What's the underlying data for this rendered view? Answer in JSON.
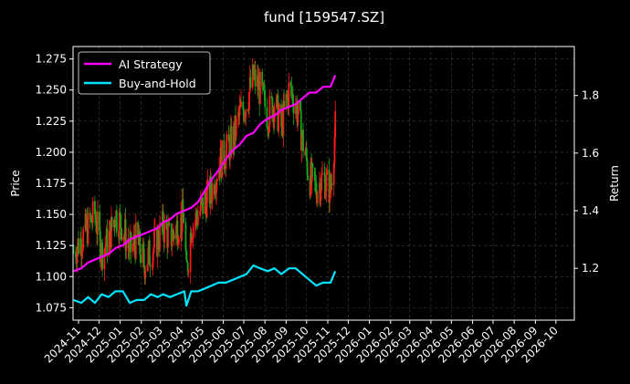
{
  "chart_data": {
    "type": "line",
    "title": "fund [159547.SZ]",
    "ylabel_left": "Price",
    "ylabel_right": "Return",
    "grid": true,
    "legend_position": "top-left",
    "x_ticks": [
      "2024-11",
      "2024-12",
      "2025-01",
      "2025-02",
      "2025-03",
      "2025-04",
      "2025-05",
      "2025-06",
      "2025-07",
      "2025-08",
      "2025-09",
      "2025-10",
      "2025-11",
      "2025-12",
      "2026-01",
      "2026-02",
      "2026-03",
      "2026-04",
      "2026-05",
      "2026-06",
      "2026-07",
      "2026-08",
      "2026-09",
      "2026-10"
    ],
    "x_range": [
      "2024-10-24",
      "2026-10-28"
    ],
    "left_axis": {
      "ylim": [
        1.065,
        1.285
      ],
      "ticks": [
        "1.075",
        "1.100",
        "1.125",
        "1.150",
        "1.175",
        "1.200",
        "1.225",
        "1.250",
        "1.275"
      ]
    },
    "right_axis": {
      "ylim": [
        1.02,
        1.97
      ],
      "ticks": [
        "1.2",
        "1.4",
        "1.6",
        "1.8"
      ]
    },
    "colors": {
      "ai": "#ff00ff",
      "bh": "#00e5ff",
      "up": "#ff1a1a",
      "down": "#1aa31a",
      "grid": "#444444"
    },
    "series": [
      {
        "name": "AI Strategy",
        "axis": "right",
        "x": [
          "2024-10-25",
          "2024-11-05",
          "2024-11-15",
          "2024-11-25",
          "2024-12-05",
          "2024-12-15",
          "2024-12-25",
          "2025-01-05",
          "2025-01-15",
          "2025-01-25",
          "2025-02-05",
          "2025-02-15",
          "2025-02-25",
          "2025-03-05",
          "2025-03-15",
          "2025-03-25",
          "2025-04-05",
          "2025-04-15",
          "2025-04-25",
          "2025-05-05",
          "2025-05-15",
          "2025-05-25",
          "2025-06-05",
          "2025-06-15",
          "2025-06-25",
          "2025-07-05",
          "2025-07-15",
          "2025-07-25",
          "2025-08-05",
          "2025-08-15",
          "2025-08-25",
          "2025-09-05",
          "2025-09-15",
          "2025-09-25",
          "2025-10-05",
          "2025-10-15",
          "2025-10-25",
          "2025-11-05",
          "2025-11-12"
        ],
        "values": [
          1.19,
          1.2,
          1.22,
          1.23,
          1.24,
          1.25,
          1.27,
          1.28,
          1.3,
          1.31,
          1.32,
          1.33,
          1.34,
          1.36,
          1.37,
          1.39,
          1.4,
          1.41,
          1.43,
          1.47,
          1.51,
          1.54,
          1.58,
          1.61,
          1.63,
          1.66,
          1.67,
          1.7,
          1.72,
          1.73,
          1.75,
          1.76,
          1.77,
          1.79,
          1.81,
          1.81,
          1.83,
          1.83,
          1.87
        ]
      },
      {
        "name": "Buy-and-Hold",
        "axis": "right",
        "x": [
          "2024-10-25",
          "2024-11-05",
          "2024-11-15",
          "2024-11-25",
          "2024-12-05",
          "2024-12-15",
          "2024-12-25",
          "2025-01-05",
          "2025-01-15",
          "2025-01-25",
          "2025-02-05",
          "2025-02-15",
          "2025-02-25",
          "2025-03-05",
          "2025-03-15",
          "2025-03-25",
          "2025-04-05",
          "2025-04-08",
          "2025-04-15",
          "2025-04-25",
          "2025-05-05",
          "2025-05-15",
          "2025-05-25",
          "2025-06-05",
          "2025-06-15",
          "2025-06-25",
          "2025-07-05",
          "2025-07-15",
          "2025-07-25",
          "2025-08-05",
          "2025-08-15",
          "2025-08-25",
          "2025-09-05",
          "2025-09-15",
          "2025-09-25",
          "2025-10-05",
          "2025-10-15",
          "2025-10-25",
          "2025-11-05",
          "2025-11-12"
        ],
        "values": [
          1.09,
          1.08,
          1.1,
          1.08,
          1.11,
          1.1,
          1.12,
          1.12,
          1.08,
          1.09,
          1.09,
          1.11,
          1.1,
          1.11,
          1.1,
          1.11,
          1.12,
          1.07,
          1.12,
          1.12,
          1.13,
          1.14,
          1.15,
          1.15,
          1.16,
          1.17,
          1.18,
          1.21,
          1.2,
          1.19,
          1.2,
          1.18,
          1.2,
          1.2,
          1.18,
          1.16,
          1.14,
          1.15,
          1.15,
          1.19
        ]
      }
    ],
    "price_series": {
      "name": "Price",
      "axis": "left",
      "x": [
        "2024-10-25",
        "2024-11-05",
        "2024-11-15",
        "2024-11-25",
        "2024-12-05",
        "2024-12-15",
        "2024-12-25",
        "2025-01-05",
        "2025-01-15",
        "2025-01-25",
        "2025-02-05",
        "2025-02-15",
        "2025-02-25",
        "2025-03-05",
        "2025-03-15",
        "2025-03-25",
        "2025-04-05",
        "2025-04-08",
        "2025-04-15",
        "2025-04-25",
        "2025-05-05",
        "2025-05-15",
        "2025-05-25",
        "2025-06-05",
        "2025-06-15",
        "2025-06-25",
        "2025-07-05",
        "2025-07-15",
        "2025-07-25",
        "2025-08-05",
        "2025-08-15",
        "2025-08-25",
        "2025-09-05",
        "2025-09-15",
        "2025-09-25",
        "2025-10-05",
        "2025-10-15",
        "2025-10-25",
        "2025-11-05",
        "2025-11-12"
      ],
      "values": [
        1.12,
        1.13,
        1.14,
        1.15,
        1.12,
        1.13,
        1.15,
        1.14,
        1.12,
        1.13,
        1.11,
        1.12,
        1.13,
        1.14,
        1.13,
        1.14,
        1.15,
        1.1,
        1.14,
        1.15,
        1.16,
        1.17,
        1.19,
        1.2,
        1.21,
        1.23,
        1.24,
        1.26,
        1.25,
        1.23,
        1.24,
        1.22,
        1.25,
        1.24,
        1.21,
        1.18,
        1.17,
        1.18,
        1.17,
        1.22
      ]
    }
  }
}
